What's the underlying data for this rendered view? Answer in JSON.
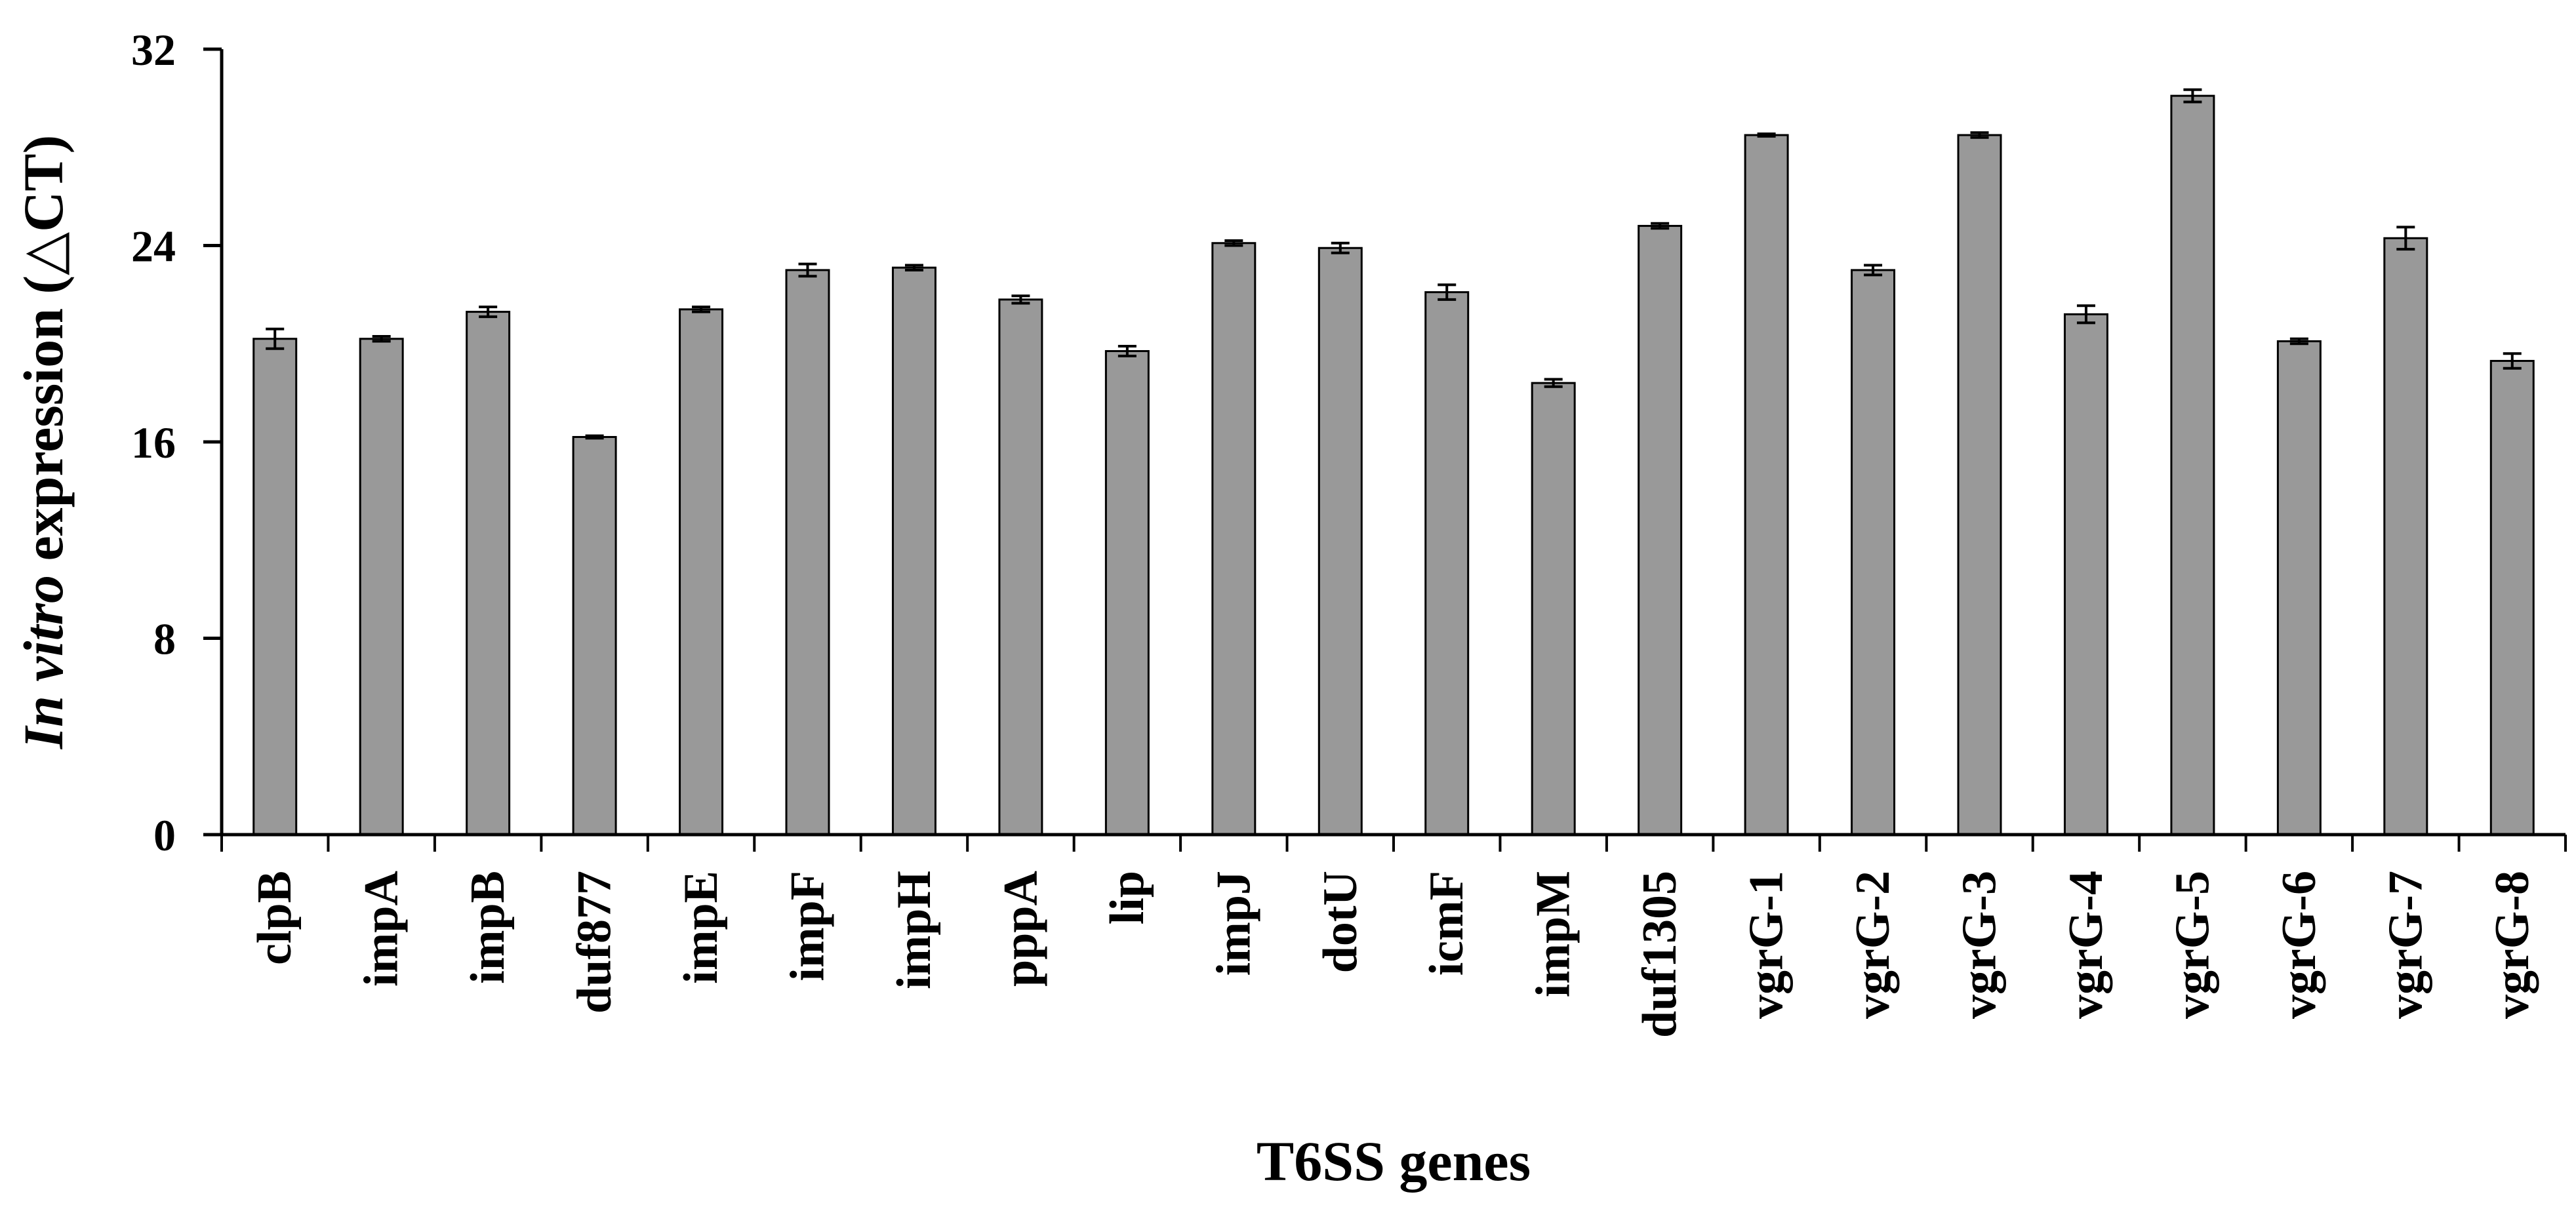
{
  "chart_data": {
    "type": "bar",
    "categories": [
      "clpB",
      "impA",
      "impB",
      "duf877",
      "impE",
      "impF",
      "impH",
      "pppA",
      "lip",
      "impJ",
      "dotU",
      "icmF",
      "impM",
      "duf1305",
      "vgrG-1",
      "vgrG-2",
      "vgrG-3",
      "vgrG-4",
      "vgrG-5",
      "vgrG-6",
      "vgrG-7",
      "vgrG-8"
    ],
    "values": [
      20.2,
      20.2,
      21.3,
      16.2,
      21.4,
      23.0,
      23.1,
      21.8,
      19.7,
      24.1,
      23.9,
      22.1,
      18.4,
      24.8,
      28.5,
      23.0,
      28.5,
      21.2,
      30.1,
      20.1,
      24.3,
      19.3
    ],
    "errors": [
      0.4,
      0.1,
      0.2,
      0.05,
      0.1,
      0.25,
      0.1,
      0.15,
      0.2,
      0.1,
      0.2,
      0.3,
      0.15,
      0.1,
      0.05,
      0.2,
      0.1,
      0.35,
      0.25,
      0.1,
      0.45,
      0.3
    ],
    "bar_color": "#999999",
    "ylim": [
      0,
      32
    ],
    "yticks": [
      "0",
      "8",
      "16",
      "24",
      "32"
    ],
    "ylabel_italic": "In vitro",
    "ylabel_rest": "expression (△CT)",
    "xlabel": "T6SS genes",
    "grid": false,
    "legend": "none"
  }
}
